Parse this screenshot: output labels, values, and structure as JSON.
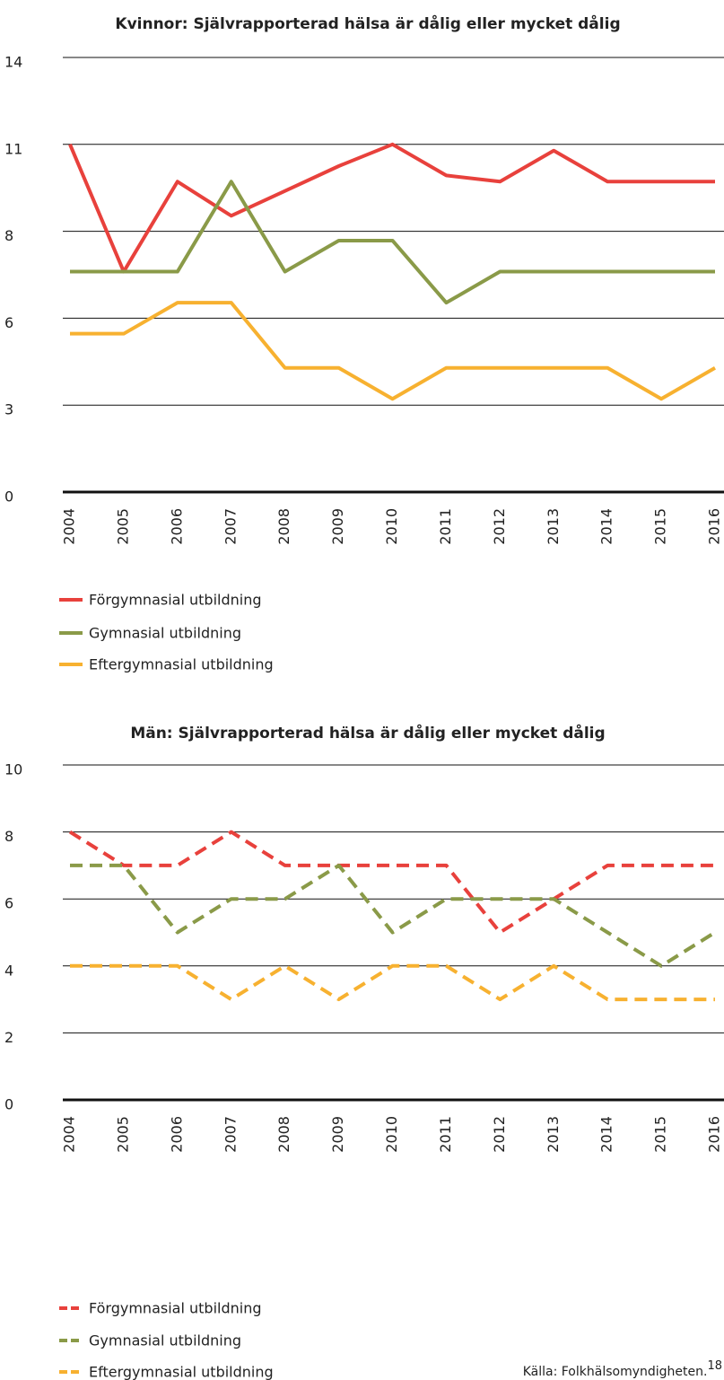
{
  "chart_data": [
    {
      "type": "line",
      "title": "Kvinnor: Självrapporterad hälsa är dålig eller mycket dålig",
      "categories": [
        "2004",
        "2005",
        "2006",
        "2007",
        "2008",
        "2009",
        "2010",
        "2011",
        "2012",
        "2013",
        "2014",
        "2015",
        "2016"
      ],
      "series": [
        {
          "name": "Förgymnasial utbildning",
          "color": "#e8413c",
          "values": [
            11.2,
            7.1,
            10,
            8.9,
            9.7,
            10.5,
            11.2,
            10.2,
            10,
            11,
            10,
            10,
            10
          ]
        },
        {
          "name": "Gymnasial utbildning",
          "color": "#8a9a48",
          "values": [
            7.1,
            7.1,
            7.1,
            10,
            7.1,
            8.1,
            8.1,
            6.1,
            7.1,
            7.1,
            7.1,
            7.1,
            7.1
          ]
        },
        {
          "name": "Eftergymnasial utbildning",
          "color": "#f7b130",
          "values": [
            5.1,
            5.1,
            6.1,
            6.1,
            4,
            4,
            3,
            4,
            4,
            4,
            4,
            3,
            4
          ]
        }
      ],
      "ylim": [
        0,
        14
      ],
      "yticks": [
        0,
        {
          "value": 2.8,
          "label": "3"
        },
        {
          "value": 5.6,
          "label": "6"
        },
        {
          "value": 8.4,
          "label": "8"
        },
        {
          "value": 11.2,
          "label": "11"
        },
        14
      ],
      "grid": true,
      "dashed": false
    },
    {
      "type": "line",
      "title": "Män: Självrapporterad hälsa är dålig eller mycket dålig",
      "categories": [
        "2004",
        "2005",
        "2006",
        "2007",
        "2008",
        "2009",
        "2010",
        "2011",
        "2012",
        "2013",
        "2014",
        "2015",
        "2016"
      ],
      "series": [
        {
          "name": "Förgymnasial utbildning",
          "color": "#e8413c",
          "values": [
            8,
            7,
            7,
            8,
            7,
            7,
            7,
            7,
            5,
            6,
            7,
            7,
            7
          ]
        },
        {
          "name": "Gymnasial utbildning",
          "color": "#8a9a48",
          "values": [
            7,
            7,
            5,
            6,
            6,
            7,
            5,
            6,
            6,
            6,
            5,
            4,
            5
          ]
        },
        {
          "name": "Eftergymnasial utbildning",
          "color": "#f7b130",
          "values": [
            4,
            4,
            4,
            3,
            4,
            3,
            4,
            4,
            3,
            4,
            3,
            3,
            3
          ]
        }
      ],
      "ylim": [
        0,
        10
      ],
      "yticks": [
        0,
        2,
        4,
        6,
        8,
        10
      ],
      "grid": true,
      "dashed": true
    }
  ],
  "footer": {
    "source": "Källa: Folkhälsomyndigheten.",
    "note": "18"
  }
}
